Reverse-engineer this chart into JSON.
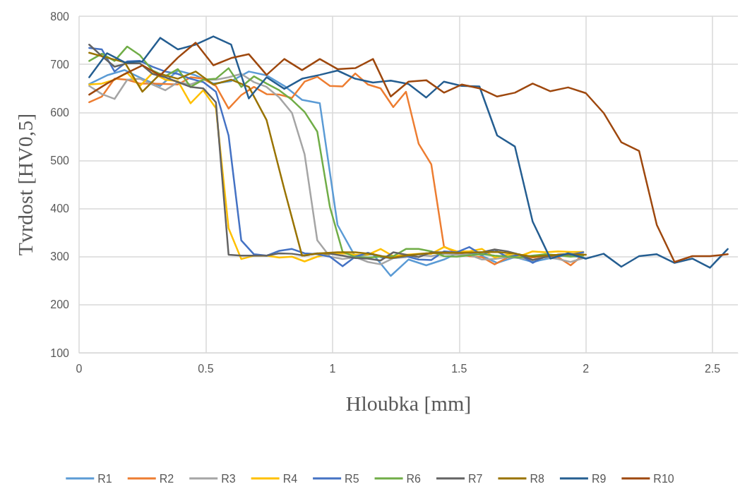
{
  "chart_data": {
    "type": "line",
    "xlabel": "Hloubka [mm]",
    "ylabel": "Tvrdost [HV0,5]",
    "xlim": [
      0,
      2.6
    ],
    "xticks": [
      0,
      0.5,
      1,
      1.5,
      2,
      2.5
    ],
    "ylim": [
      100,
      800
    ],
    "yticks": [
      100,
      200,
      300,
      400,
      500,
      600,
      700,
      800
    ],
    "grid": true,
    "legend": "bottom",
    "marker": "none",
    "line_style": "solid",
    "series": [
      {
        "name": "R1",
        "color": "#5b9bd5",
        "x": [
          0.04,
          0.11,
          0.18,
          0.25,
          0.32,
          0.39,
          0.46,
          0.53,
          0.6,
          0.67,
          0.74,
          0.81,
          0.88,
          0.95,
          1.02,
          1.09,
          1.16,
          1.23,
          1.3,
          1.37,
          1.44,
          1.51,
          1.58,
          1.65,
          1.72,
          1.79,
          1.86,
          1.93,
          2
        ],
        "values": [
          659,
          677,
          688,
          670,
          655,
          687,
          677,
          660,
          665,
          685,
          677,
          655,
          626,
          619,
          366,
          300,
          305,
          260,
          294,
          282,
          294,
          311,
          304,
          287,
          299,
          289,
          297,
          304,
          296
        ]
      },
      {
        "name": "R2",
        "color": "#ed7d31",
        "x": [
          0.04,
          0.09,
          0.14,
          0.19,
          0.24,
          0.29,
          0.34,
          0.39,
          0.44,
          0.49,
          0.54,
          0.59,
          0.64,
          0.69,
          0.74,
          0.79,
          0.84,
          0.89,
          0.94,
          0.99,
          1.04,
          1.09,
          1.14,
          1.19,
          1.24,
          1.29,
          1.34,
          1.39,
          1.44,
          1.49,
          1.54,
          1.59,
          1.64,
          1.69,
          1.74,
          1.79,
          1.84,
          1.89,
          1.94,
          1.99
        ],
        "values": [
          621,
          633,
          670,
          668,
          660,
          660,
          659,
          658,
          673,
          670,
          655,
          608,
          636,
          653,
          638,
          637,
          630,
          664,
          674,
          655,
          654,
          681,
          658,
          650,
          611,
          643,
          535,
          492,
          321,
          308,
          301,
          299,
          284,
          298,
          299,
          298,
          301,
          299,
          282,
          304
        ]
      },
      {
        "name": "R3",
        "color": "#a5a5a5",
        "x": [
          0.04,
          0.09,
          0.14,
          0.19,
          0.24,
          0.29,
          0.34,
          0.39,
          0.44,
          0.49,
          0.54,
          0.59,
          0.64,
          0.69,
          0.74,
          0.79,
          0.84,
          0.89,
          0.94,
          0.99,
          1.04,
          1.09,
          1.14,
          1.19,
          1.24,
          1.29,
          1.34,
          1.39,
          1.44,
          1.49,
          1.54,
          1.59,
          1.64,
          1.69,
          1.74,
          1.79,
          1.84,
          1.89,
          1.94,
          1.99
        ],
        "values": [
          655,
          638,
          628,
          668,
          670,
          658,
          646,
          663,
          658,
          668,
          668,
          673,
          680,
          663,
          653,
          631,
          599,
          513,
          334,
          300,
          295,
          299,
          289,
          284,
          297,
          299,
          304,
          301,
          306,
          304,
          304,
          294,
          295,
          299,
          297,
          293,
          299,
          295,
          289,
          297
        ]
      },
      {
        "name": "R4",
        "color": "#ffc000",
        "x": [
          0.04,
          0.09,
          0.14,
          0.19,
          0.24,
          0.29,
          0.34,
          0.39,
          0.44,
          0.49,
          0.54,
          0.59,
          0.64,
          0.69,
          0.74,
          0.79,
          0.84,
          0.89,
          0.94,
          0.99,
          1.04,
          1.09,
          1.14,
          1.19,
          1.24,
          1.29,
          1.34,
          1.39,
          1.44,
          1.49,
          1.54,
          1.59,
          1.64,
          1.69,
          1.74,
          1.79,
          1.84,
          1.89,
          1.94,
          1.99
        ],
        "values": [
          658,
          660,
          668,
          682,
          655,
          682,
          668,
          665,
          619,
          646,
          609,
          359,
          295,
          302,
          302,
          298,
          300,
          290,
          300,
          306,
          307,
          304,
          304,
          316,
          301,
          304,
          306,
          306,
          320,
          311,
          311,
          316,
          298,
          304,
          301,
          311,
          309,
          311,
          310,
          310
        ]
      },
      {
        "name": "R5",
        "color": "#4472c4",
        "x": [
          0.04,
          0.09,
          0.14,
          0.19,
          0.24,
          0.29,
          0.34,
          0.39,
          0.44,
          0.49,
          0.54,
          0.59,
          0.64,
          0.69,
          0.74,
          0.79,
          0.84,
          0.89,
          0.94,
          0.99,
          1.04,
          1.09,
          1.14,
          1.19,
          1.24,
          1.29,
          1.34,
          1.39,
          1.44,
          1.49,
          1.54,
          1.59,
          1.64,
          1.69,
          1.74,
          1.79,
          1.84,
          1.89,
          1.94,
          1.99
        ],
        "values": [
          734,
          731,
          685,
          706,
          707,
          695,
          685,
          680,
          670,
          663,
          643,
          552,
          334,
          305,
          302,
          312,
          316,
          307,
          305,
          300,
          280,
          300,
          308,
          299,
          297,
          301,
          294,
          293,
          311,
          309,
          320,
          304,
          314,
          299,
          304,
          287,
          301,
          304,
          304,
          309
        ]
      },
      {
        "name": "R6",
        "color": "#70ad47",
        "x": [
          0.04,
          0.09,
          0.14,
          0.19,
          0.24,
          0.29,
          0.34,
          0.39,
          0.44,
          0.49,
          0.54,
          0.59,
          0.64,
          0.69,
          0.74,
          0.79,
          0.84,
          0.89,
          0.94,
          0.99,
          1.04,
          1.09,
          1.14,
          1.19,
          1.24,
          1.29,
          1.34,
          1.39,
          1.44,
          1.49,
          1.54,
          1.59,
          1.64,
          1.69,
          1.74,
          1.79,
          1.84,
          1.89,
          1.94,
          1.99
        ],
        "values": [
          707,
          722,
          707,
          737,
          719,
          687,
          675,
          690,
          653,
          668,
          670,
          692,
          653,
          675,
          660,
          646,
          626,
          601,
          560,
          403,
          310,
          299,
          298,
          300,
          301,
          316,
          316,
          311,
          301,
          300,
          303,
          305,
          302,
          300,
          298,
          302,
          305,
          303,
          300,
          302
        ]
      },
      {
        "name": "R7",
        "color": "#636363",
        "x": [
          0.04,
          0.09,
          0.14,
          0.19,
          0.24,
          0.29,
          0.34,
          0.39,
          0.44,
          0.49,
          0.54,
          0.59,
          0.64,
          0.69,
          0.74,
          0.79,
          0.84,
          0.89,
          0.94,
          0.99,
          1.04,
          1.09,
          1.14,
          1.19,
          1.24,
          1.29,
          1.34,
          1.39,
          1.44,
          1.49,
          1.54,
          1.59,
          1.64,
          1.69,
          1.74,
          1.79,
          1.84,
          1.89,
          1.94,
          1.99
        ],
        "values": [
          741,
          717,
          695,
          702,
          702,
          680,
          673,
          663,
          653,
          650,
          621,
          304,
          302,
          302,
          302,
          307,
          306,
          302,
          307,
          306,
          302,
          297,
          296,
          292,
          309,
          304,
          299,
          309,
          309,
          308,
          308,
          309,
          315,
          311,
          304,
          293,
          299,
          304,
          306,
          304
        ]
      },
      {
        "name": "R8",
        "color": "#997300",
        "x": [
          0.04,
          0.11,
          0.18,
          0.25,
          0.32,
          0.39,
          0.46,
          0.53,
          0.6,
          0.67,
          0.74,
          0.81,
          0.88,
          0.95,
          1.02,
          1.09,
          1.16,
          1.23,
          1.3,
          1.37,
          1.44,
          1.51,
          1.58,
          1.65,
          1.72,
          1.79,
          1.86,
          1.93,
          2
        ],
        "values": [
          724,
          714,
          704,
          643,
          680,
          670,
          685,
          658,
          668,
          653,
          584,
          440,
          302,
          307,
          309,
          309,
          305,
          297,
          303,
          307,
          308,
          308,
          309,
          310,
          306,
          300,
          303,
          305,
          304
        ]
      },
      {
        "name": "R9",
        "color": "#255e91",
        "x": [
          0.04,
          0.11,
          0.18,
          0.25,
          0.32,
          0.39,
          0.46,
          0.53,
          0.6,
          0.67,
          0.74,
          0.81,
          0.88,
          0.95,
          1.02,
          1.09,
          1.16,
          1.23,
          1.3,
          1.37,
          1.44,
          1.51,
          1.58,
          1.65,
          1.72,
          1.79,
          1.86,
          1.93,
          2,
          2.07,
          2.14,
          2.21,
          2.28,
          2.35,
          2.42,
          2.49,
          2.56
        ],
        "values": [
          673,
          723,
          704,
          706,
          755,
          731,
          741,
          758,
          741,
          629,
          673,
          649,
          670,
          678,
          687,
          670,
          662,
          666,
          659,
          631,
          664,
          655,
          654,
          552,
          529,
          373,
          296,
          307,
          296,
          306,
          279,
          301,
          305,
          287,
          296,
          277,
          316
        ]
      },
      {
        "name": "R10",
        "color": "#9e480e",
        "x": [
          0.04,
          0.11,
          0.18,
          0.25,
          0.32,
          0.39,
          0.46,
          0.53,
          0.6,
          0.67,
          0.74,
          0.81,
          0.88,
          0.95,
          1.02,
          1.09,
          1.16,
          1.23,
          1.3,
          1.37,
          1.44,
          1.51,
          1.58,
          1.65,
          1.72,
          1.79,
          1.86,
          1.93,
          2,
          2.07,
          2.14,
          2.21,
          2.28,
          2.35,
          2.42,
          2.49,
          2.56
        ],
        "values": [
          637,
          660,
          680,
          698,
          677,
          714,
          745,
          698,
          713,
          721,
          678,
          711,
          688,
          711,
          690,
          692,
          711,
          633,
          664,
          667,
          641,
          658,
          650,
          633,
          641,
          660,
          644,
          652,
          640,
          599,
          538,
          520,
          366,
          289,
          301,
          301,
          305
        ]
      }
    ]
  }
}
